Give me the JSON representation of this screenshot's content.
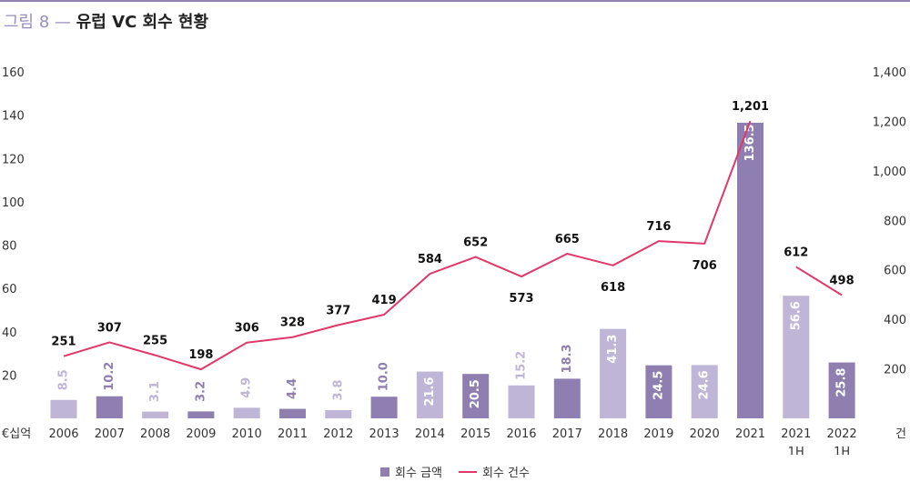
{
  "title": {
    "prefix": "그림 8 —",
    "main": "유럽 VC 회수 현황"
  },
  "colors": {
    "bar_dark": "#8e7fb0",
    "bar_light": "#bfb5d6",
    "line": "#e0386a",
    "accent": "#8f83b1"
  },
  "chart_data": {
    "type": "bar+line",
    "categories": [
      [
        "2006"
      ],
      [
        "2007"
      ],
      [
        "2008"
      ],
      [
        "2009"
      ],
      [
        "2010"
      ],
      [
        "2011"
      ],
      [
        "2012"
      ],
      [
        "2013"
      ],
      [
        "2014"
      ],
      [
        "2015"
      ],
      [
        "2016"
      ],
      [
        "2017"
      ],
      [
        "2018"
      ],
      [
        "2019"
      ],
      [
        "2020"
      ],
      [
        "2021"
      ],
      [
        "2021",
        "1H"
      ],
      [
        "2022",
        "1H"
      ]
    ],
    "series": [
      {
        "name": "회수 금액",
        "type": "bar",
        "axis": "left",
        "values": [
          8.5,
          10.2,
          3.1,
          3.2,
          4.9,
          4.4,
          3.8,
          10.0,
          21.6,
          20.5,
          15.2,
          18.3,
          41.3,
          24.5,
          24.6,
          136.5,
          56.6,
          25.8
        ],
        "labels": [
          "8.5",
          "10.2",
          "3.1",
          "3.2",
          "4.9",
          "4.4",
          "3.8",
          "10.0",
          "21.6",
          "20.5",
          "15.2",
          "18.3",
          "41.3",
          "24.5",
          "24.6",
          "136.5",
          "56.6",
          "25.8"
        ],
        "shade": [
          "light",
          "dark",
          "light",
          "dark",
          "light",
          "dark",
          "light",
          "dark",
          "light",
          "dark",
          "light",
          "dark",
          "light",
          "dark",
          "light",
          "dark",
          "light",
          "dark"
        ]
      },
      {
        "name": "회수 건수",
        "type": "line",
        "axis": "right",
        "values": [
          251,
          307,
          255,
          198,
          306,
          328,
          377,
          419,
          584,
          652,
          573,
          665,
          618,
          716,
          706,
          1201,
          612,
          498
        ],
        "labels": [
          "251",
          "307",
          "255",
          "198",
          "306",
          "328",
          "377",
          "419",
          "584",
          "652",
          "573",
          "665",
          "618",
          "716",
          "706",
          "1,201",
          "612",
          "498"
        ],
        "segments": [
          [
            0,
            15
          ],
          [
            16,
            17
          ]
        ]
      }
    ],
    "left_axis": {
      "unit": "€십억",
      "ylim": [
        0,
        160
      ],
      "ticks": [
        "20",
        "40",
        "60",
        "80",
        "100",
        "120",
        "140",
        "160"
      ]
    },
    "right_axis": {
      "unit": "건",
      "ylim": [
        0,
        1400
      ],
      "ticks": [
        "200",
        "400",
        "600",
        "800",
        "1,000",
        "1,200",
        "1,400"
      ]
    },
    "legend_position": "bottom-center",
    "grid": false
  }
}
